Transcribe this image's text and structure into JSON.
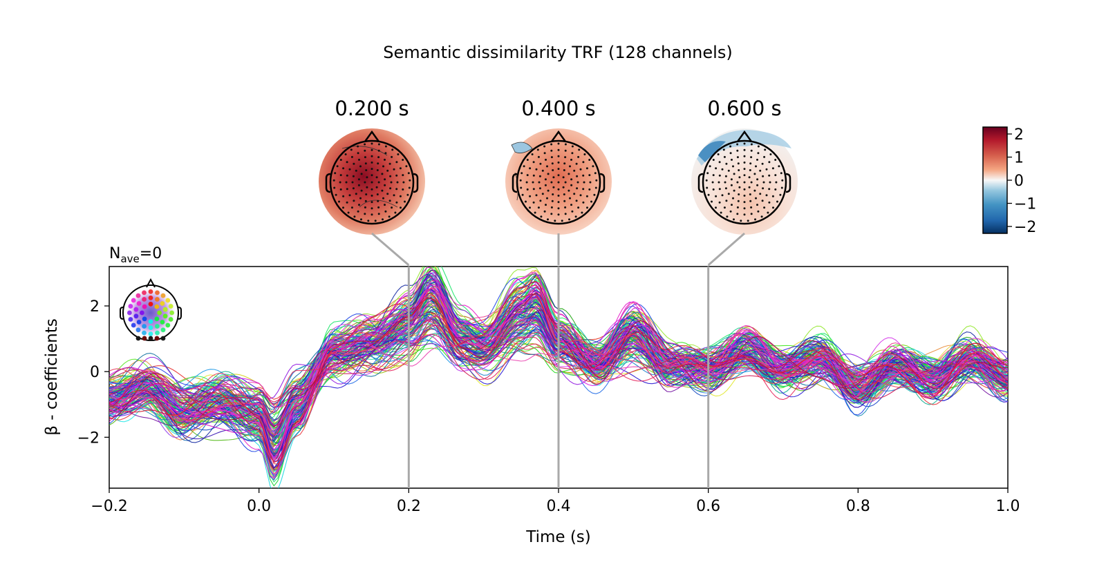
{
  "chart_data": {
    "type": "line",
    "title": "Semantic dissimilarity TRF (128 channels)",
    "annotation": {
      "main": "N",
      "sub": "ave",
      "rest": "=0"
    },
    "xlabel": "Time (s)",
    "ylabel": "β - coefficients",
    "xlim": [
      -0.2,
      1.0
    ],
    "ylim": [
      -3.55,
      3.2
    ],
    "xticks": [
      -0.2,
      0.0,
      0.2,
      0.4,
      0.6,
      0.8,
      1.0
    ],
    "xtick_labels": [
      "−0.2",
      "0.0",
      "0.2",
      "0.4",
      "0.6",
      "0.8",
      "1.0"
    ],
    "yticks": [
      2,
      0,
      -2
    ],
    "ytick_labels": [
      "2",
      "0",
      "−2"
    ],
    "n_channels": 128,
    "grid": false,
    "sensor_inset": "top-left",
    "representative_series": [
      {
        "x": [
          -0.2,
          -0.15,
          -0.1,
          -0.05,
          0.0,
          0.02,
          0.05,
          0.1,
          0.15,
          0.2,
          0.23,
          0.27,
          0.3,
          0.35,
          0.37,
          0.4,
          0.45,
          0.5,
          0.55,
          0.6,
          0.65,
          0.7,
          0.75,
          0.8,
          0.85,
          0.9,
          0.95,
          1.0
        ],
        "y": [
          -1.0,
          -0.7,
          -1.6,
          -1.2,
          -1.7,
          -2.9,
          -1.4,
          0.8,
          1.2,
          1.9,
          2.8,
          1.3,
          1.1,
          2.3,
          2.6,
          1.2,
          0.3,
          1.6,
          0.2,
          0.1,
          0.9,
          0.1,
          0.5,
          -0.6,
          0.2,
          -0.3,
          0.5,
          -0.2
        ]
      }
    ],
    "topomaps": [
      {
        "time_label": "0.200 s",
        "time": 0.2
      },
      {
        "time_label": "0.400 s",
        "time": 0.4
      },
      {
        "time_label": "0.600 s",
        "time": 0.6
      }
    ],
    "colorbar": {
      "range": [
        -2.3,
        2.3
      ],
      "ticks": [
        2,
        1,
        0,
        -1,
        -2
      ],
      "tick_labels": [
        "2",
        "1",
        "0",
        "−1",
        "−2"
      ],
      "colormap": "RdBu_r",
      "colors": [
        "#67001f",
        "#d6604d",
        "#f7f7f7",
        "#4393c3",
        "#053061"
      ]
    }
  }
}
